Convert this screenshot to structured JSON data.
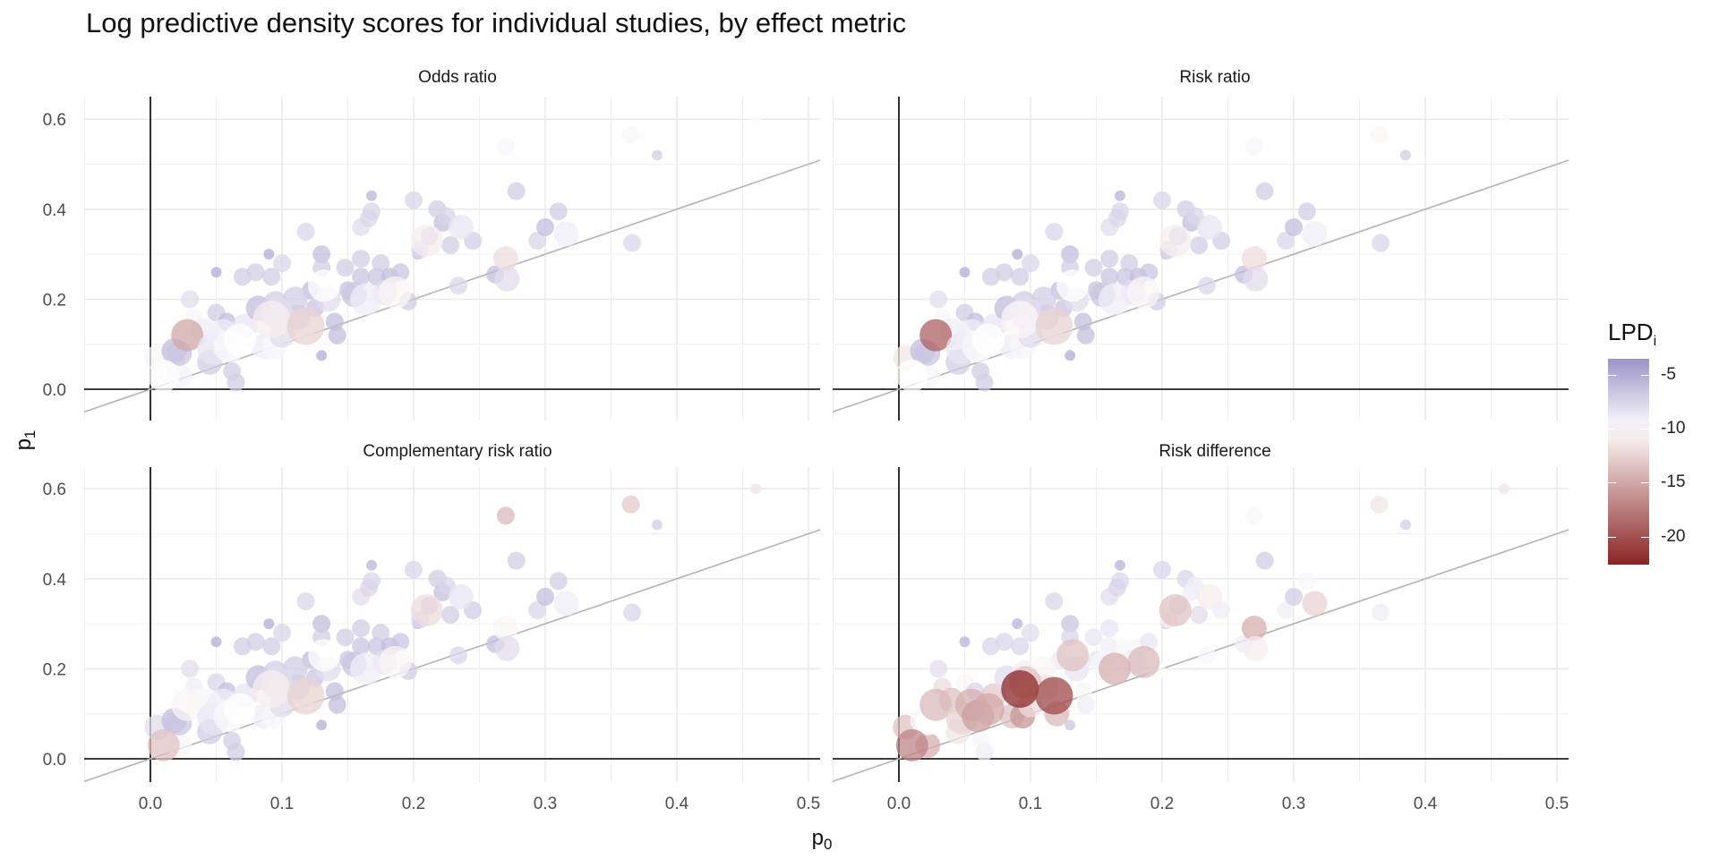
{
  "chart_data": {
    "type": "scatter",
    "title": "Log predictive density scores for individual studies, by effect metric",
    "xlabel": "p0",
    "ylabel": "p1",
    "xlim": [
      -0.05,
      0.52
    ],
    "ylim": [
      -0.055,
      0.65
    ],
    "x_ticks": [
      0.0,
      0.1,
      0.2,
      0.3,
      0.4,
      0.5
    ],
    "x_tick_labels": [
      "0.0",
      "0.1",
      "0.2",
      "0.3",
      "0.4",
      "0.5"
    ],
    "y_ticks": [
      0.0,
      0.2,
      0.4,
      0.6
    ],
    "y_tick_labels": [
      "0.0",
      "0.2",
      "0.4",
      "0.6"
    ],
    "grid": true,
    "reference_line": {
      "label": "p1 = p0",
      "slope": 1,
      "intercept": 0,
      "color": "#b3b3b3"
    },
    "facets": [
      "Odds ratio",
      "Risk ratio",
      "Complementary risk ratio",
      "Risk difference"
    ],
    "legend": {
      "title": "LPD",
      "title_subscript": "i",
      "placement": "right",
      "range": [
        -22.6,
        -3.5
      ],
      "ticks": [
        -5,
        -10,
        -15,
        -20
      ],
      "tick_labels": [
        "-5",
        "-10",
        "-15",
        "-20"
      ],
      "colors": {
        "high": "#9c93c9",
        "mid": "#ffffff",
        "low": "#8b2323"
      },
      "midpoint": -10
    },
    "point_fields": [
      "p0",
      "p1",
      "size",
      "lpd_odds_ratio",
      "lpd_risk_ratio",
      "lpd_complementary_risk_ratio",
      "lpd_risk_difference"
    ],
    "points": [
      [
        0.005,
        0.07,
        3,
        -10.5,
        -11.5,
        -8.0,
        -13.5
      ],
      [
        0.01,
        0.03,
        4,
        -9.8,
        -10.0,
        -13.5,
        -17.0
      ],
      [
        0.022,
        0.03,
        3,
        -9.2,
        -9.5,
        -9.5,
        -14.5
      ],
      [
        0.018,
        0.085,
        3,
        -6.0,
        -6.0,
        -6.0,
        -9.5
      ],
      [
        0.022,
        0.08,
        3,
        -6.5,
        -6.5,
        -6.5,
        -10.0
      ],
      [
        0.028,
        0.12,
        4,
        -15.0,
        -19.0,
        -10.5,
        -14.0
      ],
      [
        0.033,
        0.16,
        2,
        -9.5,
        -9.5,
        -9.0,
        -12.0
      ],
      [
        0.03,
        0.2,
        2,
        -8.0,
        -8.0,
        -8.0,
        -8.0
      ],
      [
        0.04,
        0.13,
        3,
        -9.0,
        -9.0,
        -9.5,
        -13.5
      ],
      [
        0.045,
        0.06,
        3,
        -7.0,
        -7.0,
        -7.0,
        -11.5
      ],
      [
        0.048,
        0.09,
        4,
        -8.5,
        -8.5,
        -8.5,
        -12.5
      ],
      [
        0.05,
        0.26,
        1,
        -5.0,
        -5.0,
        -5.0,
        -5.5
      ],
      [
        0.05,
        0.17,
        2,
        -7.0,
        -7.0,
        -7.5,
        -10.5
      ],
      [
        0.055,
        0.12,
        4,
        -9.0,
        -9.0,
        -9.0,
        -14.5
      ],
      [
        0.06,
        0.095,
        4,
        -9.5,
        -9.5,
        -9.5,
        -15.5
      ],
      [
        0.058,
        0.15,
        2,
        -6.0,
        -6.0,
        -6.0,
        -7.5
      ],
      [
        0.062,
        0.04,
        2,
        -7.0,
        -7.0,
        -7.0,
        -9.5
      ],
      [
        0.065,
        0.015,
        2,
        -7.0,
        -7.0,
        -7.0,
        -9.0
      ],
      [
        0.068,
        0.11,
        4,
        -10.0,
        -10.0,
        -10.0,
        -15.0
      ],
      [
        0.07,
        0.25,
        2,
        -7.0,
        -7.0,
        -7.0,
        -7.5
      ],
      [
        0.072,
        0.14,
        3,
        -8.5,
        -8.5,
        -8.5,
        -13.0
      ],
      [
        0.08,
        0.26,
        2,
        -7.0,
        -7.0,
        -7.0,
        -7.5
      ],
      [
        0.082,
        0.18,
        3,
        -6.0,
        -6.0,
        -6.0,
        -8.0
      ],
      [
        0.086,
        0.095,
        3,
        -9.0,
        -9.0,
        -9.0,
        -13.5
      ],
      [
        0.09,
        0.3,
        1,
        -5.0,
        -5.0,
        -5.0,
        -5.5
      ],
      [
        0.092,
        0.25,
        2,
        -7.0,
        -7.0,
        -7.0,
        -7.5
      ],
      [
        0.092,
        0.155,
        5,
        -11.0,
        -10.5,
        -11.0,
        -22.5
      ],
      [
        0.095,
        0.19,
        3,
        -7.0,
        -7.0,
        -7.0,
        -11.0
      ],
      [
        0.096,
        0.17,
        4,
        -8.0,
        -8.0,
        -8.0,
        -13.5
      ],
      [
        0.094,
        0.095,
        3,
        -9.5,
        -9.5,
        -9.5,
        -16.0
      ],
      [
        0.1,
        0.28,
        2,
        -7.5,
        -7.5,
        -7.5,
        -8.0
      ],
      [
        0.1,
        0.12,
        3,
        -8.0,
        -8.0,
        -8.0,
        -12.0
      ],
      [
        0.11,
        0.2,
        3,
        -7.0,
        -7.0,
        -7.0,
        -10.5
      ],
      [
        0.112,
        0.16,
        3,
        -7.0,
        -7.0,
        -7.0,
        -11.5
      ],
      [
        0.118,
        0.14,
        5,
        -12.5,
        -12.5,
        -12.5,
        -20.5
      ],
      [
        0.118,
        0.35,
        2,
        -7.5,
        -7.5,
        -7.5,
        -7.5
      ],
      [
        0.12,
        0.1,
        3,
        -10.0,
        -10.0,
        -10.0,
        -14.0
      ],
      [
        0.122,
        0.22,
        2,
        -6.0,
        -6.0,
        -6.0,
        -9.0
      ],
      [
        0.125,
        0.18,
        2,
        -6.5,
        -6.5,
        -6.5,
        -10.0
      ],
      [
        0.13,
        0.075,
        1,
        -5.0,
        -5.0,
        -5.0,
        -6.5
      ],
      [
        0.13,
        0.3,
        2,
        -6.0,
        -6.0,
        -6.0,
        -6.5
      ],
      [
        0.13,
        0.27,
        2,
        -7.0,
        -7.0,
        -7.0,
        -7.5
      ],
      [
        0.132,
        0.23,
        4,
        -10.0,
        -10.0,
        -10.0,
        -13.5
      ],
      [
        0.135,
        0.2,
        3,
        -8.0,
        -8.0,
        -8.0,
        -8.5
      ],
      [
        0.14,
        0.15,
        2,
        -6.0,
        -6.0,
        -6.0,
        -9.5
      ],
      [
        0.142,
        0.12,
        2,
        -6.0,
        -6.0,
        -6.0,
        -9.0
      ],
      [
        0.148,
        0.27,
        2,
        -7.0,
        -7.0,
        -7.0,
        -8.5
      ],
      [
        0.15,
        0.22,
        2,
        -6.5,
        -6.5,
        -6.5,
        -8.5
      ],
      [
        0.155,
        0.21,
        3,
        -6.5,
        -6.5,
        -6.5,
        -9.5
      ],
      [
        0.16,
        0.25,
        2,
        -6.5,
        -6.5,
        -6.5,
        -9.0
      ],
      [
        0.16,
        0.29,
        2,
        -7.0,
        -7.0,
        -7.0,
        -8.5
      ],
      [
        0.16,
        0.36,
        2,
        -8.0,
        -8.0,
        -8.0,
        -8.0
      ],
      [
        0.164,
        0.2,
        4,
        -9.0,
        -9.0,
        -9.0,
        -14.5
      ],
      [
        0.166,
        0.38,
        2,
        -7.5,
        -7.5,
        -7.5,
        -7.5
      ],
      [
        0.168,
        0.43,
        1,
        -5.5,
        -5.5,
        -5.5,
        -5.5
      ],
      [
        0.168,
        0.395,
        2,
        -7.5,
        -7.5,
        -7.5,
        -7.5
      ],
      [
        0.172,
        0.25,
        2,
        -6.5,
        -6.5,
        -6.5,
        -9.5
      ],
      [
        0.175,
        0.28,
        2,
        -7.0,
        -7.0,
        -7.0,
        -10.0
      ],
      [
        0.178,
        0.215,
        3,
        -8.0,
        -8.0,
        -8.0,
        -9.0
      ],
      [
        0.182,
        0.25,
        2,
        -6.0,
        -6.0,
        -6.0,
        -9.5
      ],
      [
        0.186,
        0.215,
        4,
        -10.5,
        -10.5,
        -10.5,
        -14.0
      ],
      [
        0.19,
        0.26,
        2,
        -6.5,
        -6.5,
        -6.5,
        -8.5
      ],
      [
        0.196,
        0.195,
        2,
        -7.0,
        -7.0,
        -7.0,
        -10.0
      ],
      [
        0.2,
        0.42,
        2,
        -7.5,
        -7.5,
        -7.5,
        -7.5
      ],
      [
        0.203,
        0.3,
        1,
        -6.0,
        -6.0,
        -6.0,
        -7.0
      ],
      [
        0.205,
        0.31,
        2,
        -7.5,
        -7.5,
        -7.5,
        -11.0
      ],
      [
        0.21,
        0.33,
        4,
        -11.0,
        -11.0,
        -12.0,
        -13.5
      ],
      [
        0.212,
        0.34,
        2,
        -6.5,
        -6.5,
        -6.5,
        -8.0
      ],
      [
        0.218,
        0.4,
        2,
        -7.0,
        -7.0,
        -7.0,
        -7.5
      ],
      [
        0.222,
        0.37,
        2,
        -6.0,
        -6.0,
        -6.0,
        -9.0
      ],
      [
        0.225,
        0.385,
        2,
        -7.5,
        -7.5,
        -7.5,
        -9.0
      ],
      [
        0.228,
        0.32,
        2,
        -7.0,
        -7.0,
        -7.0,
        -8.0
      ],
      [
        0.234,
        0.23,
        2,
        -7.5,
        -7.5,
        -7.5,
        -9.5
      ],
      [
        0.236,
        0.36,
        3,
        -8.5,
        -8.5,
        -8.5,
        -11.0
      ],
      [
        0.245,
        0.33,
        2,
        -7.0,
        -7.0,
        -7.0,
        -9.0
      ],
      [
        0.262,
        0.255,
        2,
        -6.0,
        -6.0,
        -6.0,
        -9.0
      ],
      [
        0.27,
        0.29,
        3,
        -12.0,
        -12.0,
        -10.5,
        -14.5
      ],
      [
        0.27,
        0.54,
        2,
        -9.5,
        -9.5,
        -14.0,
        -9.5
      ],
      [
        0.271,
        0.245,
        3,
        -8.0,
        -8.0,
        -8.0,
        -11.0
      ],
      [
        0.278,
        0.44,
        2,
        -7.0,
        -7.0,
        -7.0,
        -7.0
      ],
      [
        0.294,
        0.33,
        2,
        -7.5,
        -7.5,
        -7.5,
        -9.0
      ],
      [
        0.3,
        0.36,
        2,
        -6.0,
        -6.0,
        -6.0,
        -7.0
      ],
      [
        0.31,
        0.395,
        2,
        -7.0,
        -7.0,
        -7.0,
        -9.5
      ],
      [
        0.316,
        0.345,
        3,
        -9.0,
        -9.0,
        -9.0,
        -12.5
      ],
      [
        0.365,
        0.565,
        2,
        -10.5,
        -10.5,
        -13.0,
        -11.5
      ],
      [
        0.366,
        0.325,
        2,
        -7.5,
        -7.5,
        -7.5,
        -9.0
      ],
      [
        0.385,
        0.52,
        1,
        -7.0,
        -7.0,
        -7.0,
        -7.0
      ],
      [
        0.46,
        0.6,
        1,
        -10.2,
        -10.2,
        -11.5,
        -11.5
      ]
    ]
  }
}
